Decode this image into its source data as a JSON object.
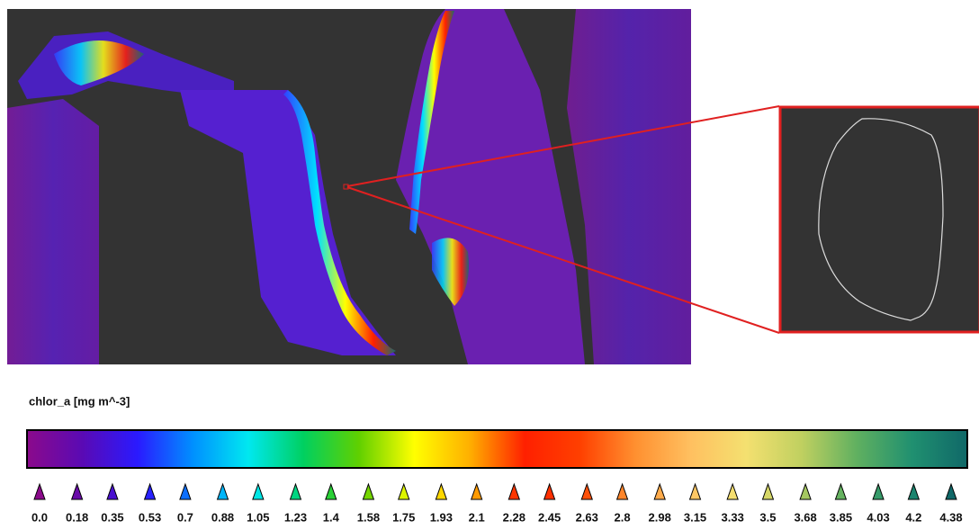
{
  "colorbar": {
    "label": "chlor_a [mg m^-3]",
    "colors": [
      "#8b0a8b",
      "#5a0ab4",
      "#2a1aff",
      "#0090ff",
      "#00e8f0",
      "#00d060",
      "#60d000",
      "#ffff00",
      "#ffb000",
      "#ff2000",
      "#ff4000",
      "#ff9030",
      "#ffc060",
      "#f4e070",
      "#c0d060",
      "#60b060",
      "#209070",
      "#106868"
    ],
    "ticks": [
      {
        "value": 0,
        "label": "0.0"
      },
      0.18,
      0.35,
      0.53,
      0.7,
      0.88,
      1.05,
      1.23,
      1.4,
      1.58,
      1.75,
      1.93,
      2.1,
      2.28,
      2.45,
      2.63,
      2.8,
      2.98,
      3.15,
      3.33,
      3.5,
      3.68,
      3.85,
      4.03,
      4.2,
      4.38
    ]
  }
}
